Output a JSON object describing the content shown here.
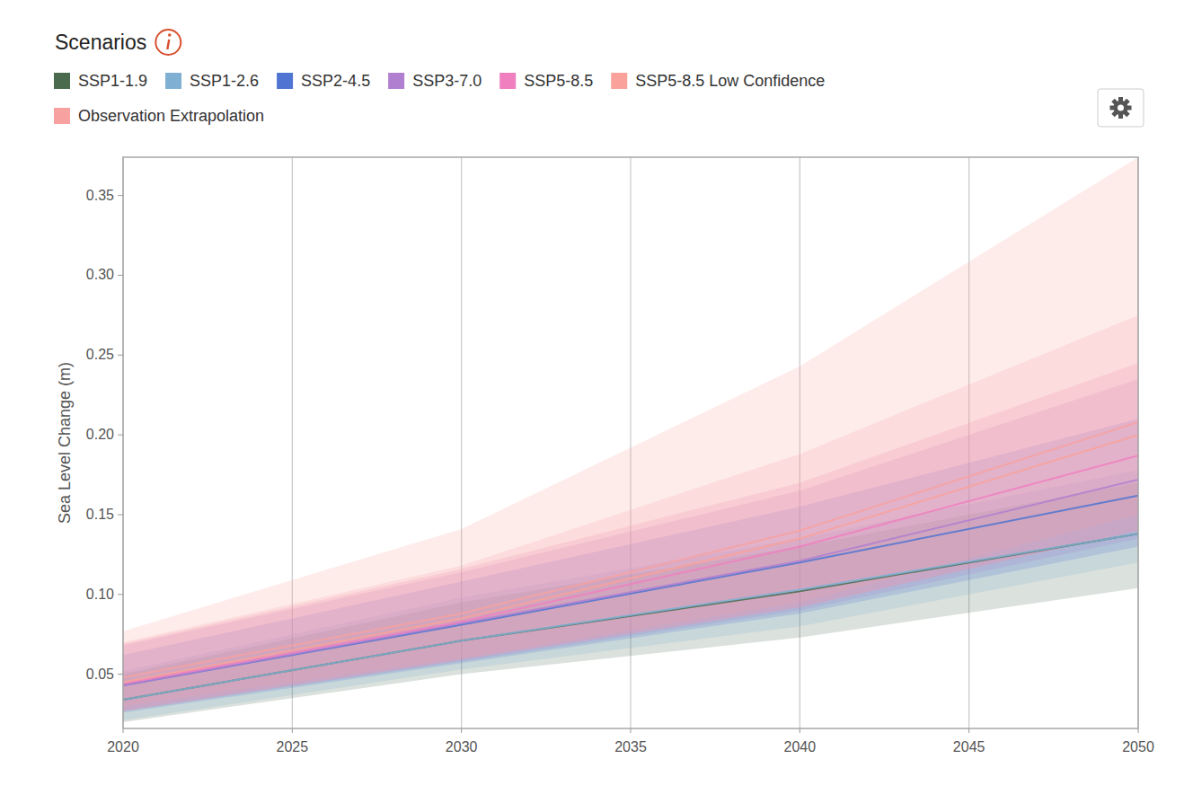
{
  "chart_data": {
    "type": "line",
    "title": "Scenarios",
    "y_label": "Sea Level Change (m)",
    "legend": "top-left",
    "grid": true,
    "x": [
      2020,
      2030,
      2040,
      2050
    ],
    "xlim": [
      2020,
      2050
    ],
    "xticks": [
      2020,
      2025,
      2030,
      2035,
      2040,
      2045,
      2050
    ],
    "ylim": [
      0.016,
      0.374
    ],
    "yticks": [
      0.05,
      {
        "value": 0.1,
        "label": "0.10"
      },
      0.15,
      {
        "value": 0.2,
        "label": "0.20"
      },
      0.25,
      {
        "value": 0.3,
        "label": "0.30"
      },
      0.35
    ],
    "series": [
      {
        "name": "SSP1-1.9",
        "color": "#4a6b4e",
        "values": [
          0.034,
          0.071,
          0.102,
          0.138
        ],
        "low": [
          0.02,
          0.05,
          0.073,
          0.104
        ],
        "high": [
          0.05,
          0.095,
          0.13,
          0.17
        ]
      },
      {
        "name": "SSP1-2.6",
        "color": "#7fb0d4",
        "values": [
          0.034,
          0.071,
          0.103,
          0.138
        ],
        "low": [
          0.021,
          0.053,
          0.08,
          0.12
        ],
        "high": [
          0.052,
          0.098,
          0.135,
          0.178
        ]
      },
      {
        "name": "SSP2-4.5",
        "color": "#4f74d1",
        "values": [
          0.043,
          0.081,
          0.12,
          0.162
        ],
        "low": [
          0.026,
          0.057,
          0.088,
          0.13
        ],
        "high": [
          0.062,
          0.108,
          0.155,
          0.21
        ]
      },
      {
        "name": "SSP3-7.0",
        "color": "#b07fd0",
        "values": [
          0.043,
          0.082,
          0.121,
          0.172
        ],
        "low": [
          0.027,
          0.058,
          0.09,
          0.135
        ],
        "high": [
          0.068,
          0.114,
          0.165,
          0.235
        ]
      },
      {
        "name": "SSP5-8.5",
        "color": "#f07fbf",
        "values": [
          0.044,
          0.083,
          0.13,
          0.187
        ],
        "low": [
          0.027,
          0.059,
          0.092,
          0.14
        ],
        "high": [
          0.069,
          0.116,
          0.17,
          0.245
        ]
      },
      {
        "name": "SSP5-8.5 Low Confidence",
        "color": "#f9a19a",
        "values": [
          0.045,
          0.085,
          0.135,
          0.2
        ],
        "low": [
          0.027,
          0.059,
          0.092,
          0.14
        ],
        "high": [
          0.077,
          0.141,
          0.243,
          0.374
        ]
      },
      {
        "name": "Observation Extrapolation",
        "color": "#f7a1a1",
        "values": [
          0.048,
          0.088,
          0.14,
          0.208
        ],
        "low": [
          0.03,
          0.06,
          0.095,
          0.15
        ],
        "high": [
          0.07,
          0.118,
          0.188,
          0.275
        ]
      }
    ]
  }
}
